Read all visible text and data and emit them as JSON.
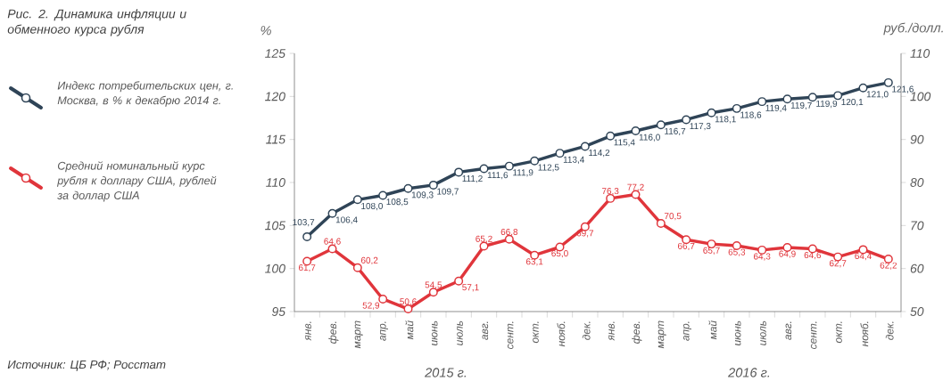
{
  "chart_data": {
    "type": "line",
    "title": "Рис. 2. Динамика инфляции и обменного курса рубля",
    "ylabel": "%",
    "y2label": "руб./долл.",
    "categories": [
      "янв.",
      "фев.",
      "март",
      "апр.",
      "май",
      "июнь",
      "июль",
      "авг.",
      "сент.",
      "окт.",
      "нояб.",
      "дек.",
      "янв.",
      "фев.",
      "март",
      "апр.",
      "май",
      "июнь",
      "июль",
      "авг.",
      "сент.",
      "окт.",
      "нояб.",
      "дек."
    ],
    "series": [
      {
        "name": "Индекс потребительских цен, г. Москва, в % к декабрю 2014 г.",
        "color": "#2f4457",
        "values": [
          103.7,
          106.4,
          108.0,
          108.5,
          109.3,
          109.7,
          111.2,
          111.6,
          111.9,
          112.5,
          113.4,
          114.2,
          115.4,
          116.0,
          116.7,
          117.3,
          118.1,
          118.6,
          119.4,
          119.7,
          119.9,
          120.1,
          121.0,
          121.6
        ],
        "value_labels": [
          "103,7",
          "106,4",
          "108,0",
          "108,5",
          "109,3",
          "109,7",
          "111,2",
          "111,6",
          "111,9",
          "112,5",
          "113,4",
          "114,2",
          "115,4",
          "116,0",
          "116,7",
          "117,3",
          "118,1",
          "118,6",
          "119,4",
          "119,7",
          "119,9",
          "120,1",
          "121,0",
          "121,6"
        ]
      },
      {
        "name": "Средний номинальный курс рубля к доллару США, рублей за доллар США",
        "color": "#e0353b",
        "axis": "y2",
        "values": [
          61.7,
          64.6,
          60.2,
          52.9,
          50.6,
          54.5,
          57.1,
          65.2,
          66.8,
          63.1,
          65.0,
          69.7,
          76.3,
          77.2,
          70.5,
          66.7,
          65.7,
          65.3,
          64.3,
          64.9,
          64.6,
          62.7,
          64.4,
          62.2
        ],
        "value_labels": [
          "61,7",
          "64,6",
          "60,2",
          "52,9",
          "50,6",
          "54,5",
          "57,1",
          "65,2",
          "66,8",
          "63,1",
          "65,0",
          "69,7",
          "76,3",
          "77,2",
          "70,5",
          "66,7",
          "65,7",
          "65,3",
          "64,3",
          "64,9",
          "64,6",
          "62,7",
          "64,4",
          "62,2"
        ]
      }
    ],
    "ylim": [
      95,
      125
    ],
    "yticks": [
      95,
      100,
      105,
      110,
      115,
      120,
      125
    ],
    "y2lim": [
      50,
      110
    ],
    "y2ticks": [
      50,
      60,
      70,
      80,
      90,
      100,
      110
    ],
    "marker": "circle",
    "line_style": "solid",
    "legend": "left",
    "annotations": [
      "2015 г.",
      "2016 г.",
      "Источник: ЦБ РФ; Росстат"
    ]
  }
}
